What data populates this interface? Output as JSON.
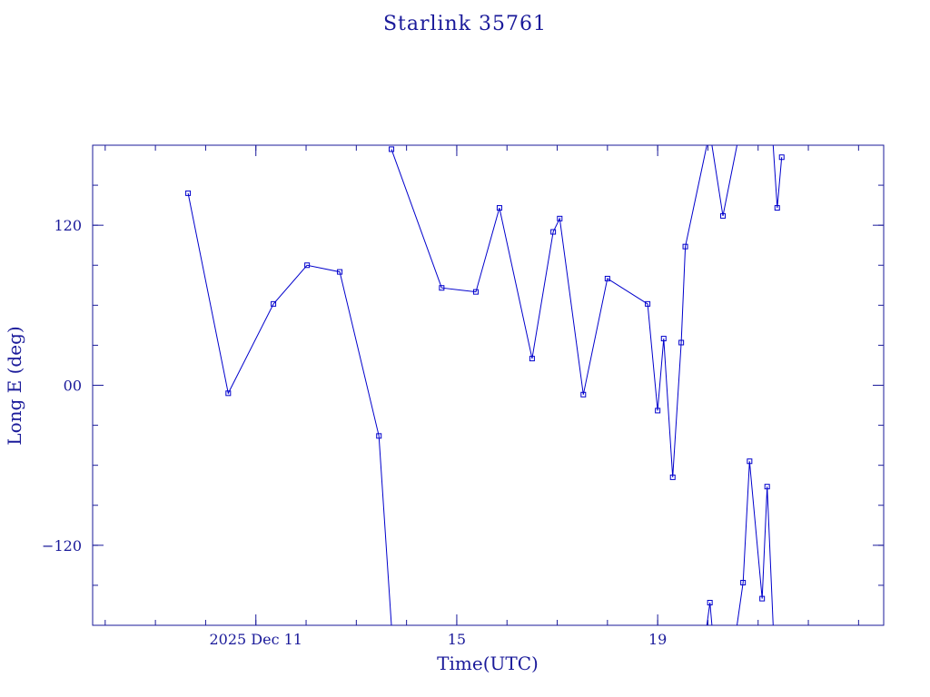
{
  "chart_data": {
    "type": "line",
    "title": "Starlink 35761",
    "xlabel": "Time(UTC)",
    "ylabel": "Long E (deg)",
    "x_unit": "days in December 2025",
    "xlim": [
      7.75,
      23.5
    ],
    "ylim": [
      -180,
      180
    ],
    "x_ticks": [
      {
        "value": 11,
        "label": "2025 Dec 11"
      },
      {
        "value": 15,
        "label": "15"
      },
      {
        "value": 19,
        "label": "19"
      }
    ],
    "y_ticks": [
      {
        "value": 120,
        "label": "120"
      },
      {
        "value": 0,
        "label": "00"
      },
      {
        "value": -120,
        "label": "−120"
      }
    ],
    "series": [
      {
        "color": "#0000cc",
        "segments": [
          [
            [
              9.65,
              144
            ],
            [
              10.45,
              -6
            ],
            [
              11.35,
              61
            ],
            [
              12.02,
              90
            ],
            [
              12.67,
              85
            ],
            [
              13.45,
              -38
            ],
            [
              13.7,
              -180
            ]
          ],
          [
            [
              13.7,
              177
            ],
            [
              14.7,
              73
            ],
            [
              15.38,
              70
            ],
            [
              15.85,
              133
            ],
            [
              16.5,
              20
            ],
            [
              16.92,
              115
            ],
            [
              17.05,
              125
            ],
            [
              17.52,
              -7
            ],
            [
              18.0,
              80
            ],
            [
              18.8,
              61
            ],
            [
              19.0,
              -19
            ],
            [
              19.12,
              35
            ],
            [
              19.3,
              -69
            ],
            [
              19.47,
              32
            ],
            [
              19.55,
              104
            ],
            [
              19.98,
              180
            ]
          ],
          [
            [
              19.98,
              -180
            ],
            [
              20.04,
              -163
            ],
            [
              20.08,
              -180
            ]
          ],
          [
            [
              20.08,
              180
            ],
            [
              20.3,
              127
            ],
            [
              20.58,
              180
            ]
          ],
          [
            [
              20.58,
              -180
            ],
            [
              20.7,
              -148
            ],
            [
              20.83,
              -57
            ],
            [
              21.08,
              -160
            ],
            [
              21.18,
              -76
            ],
            [
              21.3,
              -180
            ]
          ],
          [
            [
              21.3,
              180
            ],
            [
              21.38,
              133
            ],
            [
              21.47,
              171
            ]
          ]
        ]
      }
    ]
  }
}
